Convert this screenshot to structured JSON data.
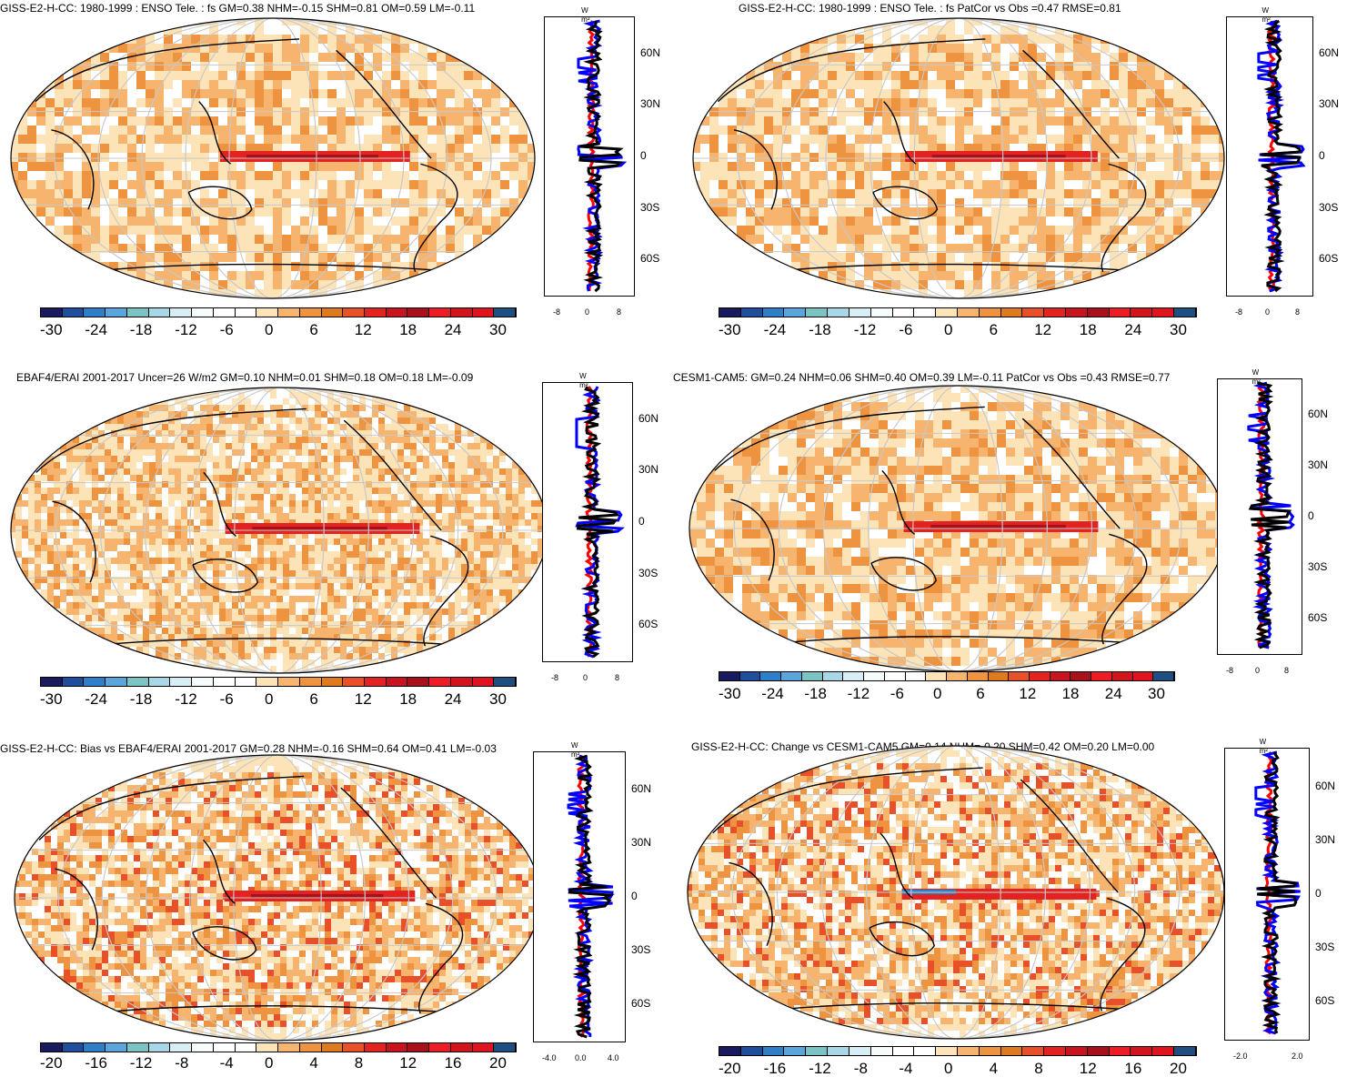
{
  "panels": [
    {
      "title": "GISS-E2-H-CC: 1980-1999 : ENSO Tele. : fs GM=0.38 NHM=-0.15 SHM=0.81 OM=0.59 LM=-0.11",
      "colorbar_labels": [
        "-30",
        "-24",
        "-18",
        "-12",
        "-6",
        "0",
        "6",
        "12",
        "18",
        "24",
        "30"
      ],
      "side_unit": "W m²",
      "side_lat_labels": [
        "60N",
        "30N",
        "0",
        "30S",
        "60S"
      ],
      "side_x_labels": [
        "-8",
        "0",
        "8"
      ]
    },
    {
      "title": "GISS-E2-H-CC: 1980-1999 : ENSO Tele. : fs PatCor vs Obs =0.47 RMSE=0.81",
      "colorbar_labels": [
        "-30",
        "-24",
        "-18",
        "-12",
        "-6",
        "0",
        "6",
        "12",
        "18",
        "24",
        "30"
      ],
      "side_unit": "W m²",
      "side_lat_labels": [
        "60N",
        "30N",
        "0",
        "30S",
        "60S"
      ],
      "side_x_labels": [
        "-8",
        "0",
        "8"
      ]
    },
    {
      "title": "EBAF4/ERAI 2001-2017 Uncer=26 W/m2 GM=0.10 NHM=0.01 SHM=0.18 OM=0.18 LM=-0.09",
      "colorbar_labels": [
        "-30",
        "-24",
        "-18",
        "-12",
        "-6",
        "0",
        "6",
        "12",
        "18",
        "24",
        "30"
      ],
      "side_unit": "W m²",
      "side_lat_labels": [
        "60N",
        "30N",
        "0",
        "30S",
        "60S"
      ],
      "side_x_labels": [
        "-8",
        "0",
        "8"
      ]
    },
    {
      "title": "CESM1-CAM5: GM=0.24 NHM=0.06 SHM=0.40 OM=0.39 LM=-0.11 PatCor vs Obs =0.43 RMSE=0.77",
      "colorbar_labels": [
        "-30",
        "-24",
        "-18",
        "-12",
        "-6",
        "0",
        "6",
        "12",
        "18",
        "24",
        "30"
      ],
      "side_unit": "W m²",
      "side_lat_labels": [
        "60N",
        "30N",
        "0",
        "30S",
        "60S"
      ],
      "side_x_labels": [
        "-8",
        "0",
        "8"
      ]
    },
    {
      "title": "GISS-E2-H-CC: Bias vs EBAF4/ERAI 2001-2017 GM=0.28 NHM=-0.16 SHM=0.64 OM=0.41 LM=-0.03",
      "colorbar_labels": [
        "-20",
        "-16",
        "-12",
        "-8",
        "-4",
        "0",
        "4",
        "8",
        "12",
        "16",
        "20"
      ],
      "side_unit": "W m²",
      "side_lat_labels": [
        "60N",
        "30N",
        "0",
        "30S",
        "60S"
      ],
      "side_x_labels": [
        "-4.0",
        "0.0",
        "4.0"
      ]
    },
    {
      "title": "GISS-E2-H-CC: Change vs CESM1-CAM5 GM=0.14 NHM=-0.20 SHM=0.42 OM=0.20 LM=0.00",
      "colorbar_labels": [
        "-20",
        "-16",
        "-12",
        "-8",
        "-4",
        "0",
        "4",
        "8",
        "12",
        "16",
        "20"
      ],
      "side_unit": "W m²",
      "side_lat_labels": [
        "60N",
        "30N",
        "0",
        "30S",
        "60S"
      ],
      "side_x_labels": [
        "-2.0",
        "2.0"
      ]
    }
  ],
  "colors": {
    "palette": [
      "#1a1a5e",
      "#1f4e9c",
      "#2f7fc8",
      "#5aa6dc",
      "#7cc4c4",
      "#a8d8e8",
      "#d6eef4",
      "#f6fbfc",
      "#ffffff",
      "#ffffff",
      "#fde3b8",
      "#f6b46e",
      "#ee9440",
      "#e07a1e",
      "#e8502a",
      "#e32222",
      "#c8141e",
      "#a8101a",
      "#ee1c24",
      "#d2141c",
      "#e0141e",
      "#1f4e80"
    ],
    "land_line": "#000000",
    "grid_line": "#c8c8c8",
    "zonal_obs": "#0000ff",
    "zonal_model": "#000000",
    "zonal_diff": "#ff0000"
  }
}
